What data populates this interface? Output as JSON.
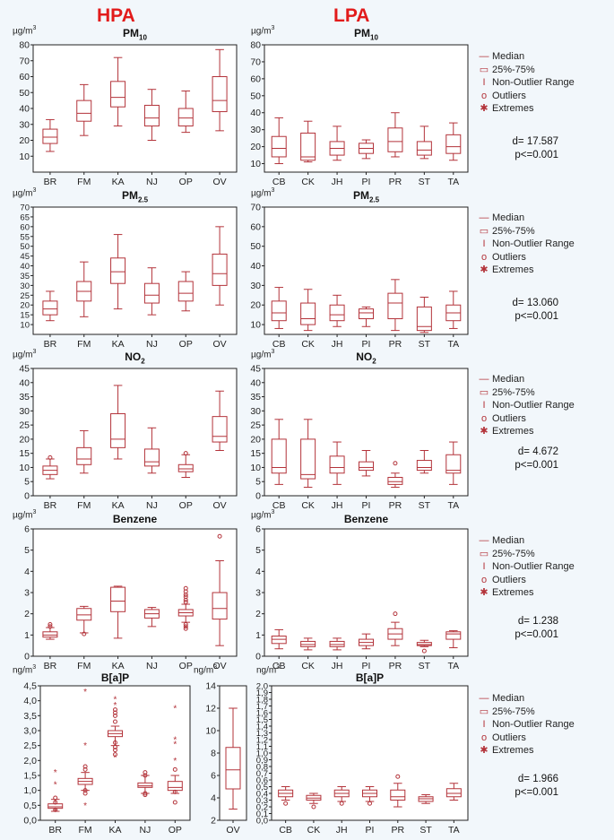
{
  "headers": {
    "hpa": "HPA",
    "lpa": "LPA"
  },
  "legend": [
    "Median",
    "25%-75%",
    "Non-Outlier Range",
    "Outliers",
    "Extremes"
  ],
  "colors": {
    "box": "#b3333a",
    "header": "#e21b1b"
  },
  "chart_data": [
    {
      "id": "pm10-hpa",
      "type": "box",
      "title": "PM",
      "title_sub": "10",
      "unit": "µg/m3",
      "ylim": [
        0,
        80
      ],
      "yticks": [
        10,
        20,
        30,
        40,
        50,
        60,
        70,
        80
      ],
      "categories": [
        "BR",
        "FM",
        "KA",
        "NJ",
        "OP",
        "OV"
      ],
      "boxes": [
        {
          "min": 13,
          "q1": 18,
          "median": 22,
          "q3": 27,
          "max": 33,
          "outliers": [],
          "extremes": []
        },
        {
          "min": 23,
          "q1": 32,
          "median": 37,
          "q3": 45,
          "max": 55,
          "outliers": [],
          "extremes": []
        },
        {
          "min": 29,
          "q1": 41,
          "median": 47,
          "q3": 57,
          "max": 72,
          "outliers": [],
          "extremes": []
        },
        {
          "min": 20,
          "q1": 29,
          "median": 34,
          "q3": 42,
          "max": 52,
          "outliers": [],
          "extremes": []
        },
        {
          "min": 25,
          "q1": 29,
          "median": 34,
          "q3": 40,
          "max": 51,
          "outliers": [],
          "extremes": []
        },
        {
          "min": 26,
          "q1": 38,
          "median": 45,
          "q3": 60,
          "max": 77,
          "outliers": [],
          "extremes": []
        }
      ]
    },
    {
      "id": "pm10-lpa",
      "type": "box",
      "title": "PM",
      "title_sub": "10",
      "unit": "µg/m3",
      "ylim": [
        5,
        80
      ],
      "yticks": [
        10,
        20,
        30,
        40,
        50,
        60,
        70,
        80
      ],
      "categories": [
        "CB",
        "CK",
        "JH",
        "PI",
        "PR",
        "ST",
        "TA"
      ],
      "boxes": [
        {
          "min": 10,
          "q1": 14,
          "median": 19,
          "q3": 26,
          "max": 37,
          "outliers": [],
          "extremes": []
        },
        {
          "min": 11,
          "q1": 12,
          "median": 14,
          "q3": 28,
          "max": 35,
          "outliers": [],
          "extremes": []
        },
        {
          "min": 12,
          "q1": 15,
          "median": 19,
          "q3": 23,
          "max": 32,
          "outliers": [],
          "extremes": []
        },
        {
          "min": 13,
          "q1": 16,
          "median": 19,
          "q3": 22,
          "max": 24,
          "outliers": [],
          "extremes": []
        },
        {
          "min": 14,
          "q1": 17,
          "median": 23,
          "q3": 31,
          "max": 40,
          "outliers": [],
          "extremes": []
        },
        {
          "min": 13,
          "q1": 15,
          "median": 18,
          "q3": 23,
          "max": 32,
          "outliers": [],
          "extremes": []
        },
        {
          "min": 12,
          "q1": 16,
          "median": 20,
          "q3": 27,
          "max": 34,
          "outliers": [],
          "extremes": []
        }
      ]
    },
    {
      "id": "pm25-hpa",
      "type": "box",
      "title": "PM",
      "title_sub": "2.5",
      "unit": "µg/m3",
      "ylim": [
        5,
        70
      ],
      "yticks": [
        10,
        15,
        20,
        25,
        30,
        35,
        40,
        45,
        50,
        55,
        60,
        65,
        70
      ],
      "categories": [
        "BR",
        "FM",
        "KA",
        "NJ",
        "OP",
        "OV"
      ],
      "boxes": [
        {
          "min": 12,
          "q1": 15,
          "median": 18,
          "q3": 22,
          "max": 27,
          "outliers": [],
          "extremes": []
        },
        {
          "min": 14,
          "q1": 22,
          "median": 27,
          "q3": 32,
          "max": 42,
          "outliers": [],
          "extremes": []
        },
        {
          "min": 18,
          "q1": 31,
          "median": 37,
          "q3": 44,
          "max": 56,
          "outliers": [],
          "extremes": []
        },
        {
          "min": 15,
          "q1": 21,
          "median": 25,
          "q3": 31,
          "max": 39,
          "outliers": [],
          "extremes": []
        },
        {
          "min": 17,
          "q1": 22,
          "median": 26,
          "q3": 32,
          "max": 37,
          "outliers": [],
          "extremes": []
        },
        {
          "min": 20,
          "q1": 30,
          "median": 36,
          "q3": 46,
          "max": 60,
          "outliers": [],
          "extremes": []
        }
      ]
    },
    {
      "id": "pm25-lpa",
      "type": "box",
      "title": "PM",
      "title_sub": "2.5",
      "unit": "µg/m3",
      "ylim": [
        5,
        70
      ],
      "yticks": [
        10,
        20,
        30,
        40,
        50,
        60,
        70
      ],
      "categories": [
        "CB",
        "CK",
        "JH",
        "PI",
        "PR",
        "ST",
        "TA"
      ],
      "boxes": [
        {
          "min": 8,
          "q1": 12,
          "median": 16,
          "q3": 22,
          "max": 29,
          "outliers": [],
          "extremes": []
        },
        {
          "min": 7,
          "q1": 10,
          "median": 13,
          "q3": 21,
          "max": 28,
          "outliers": [],
          "extremes": []
        },
        {
          "min": 9,
          "q1": 12,
          "median": 15,
          "q3": 20,
          "max": 25,
          "outliers": [],
          "extremes": []
        },
        {
          "min": 9,
          "q1": 13,
          "median": 16,
          "q3": 18,
          "max": 19,
          "outliers": [],
          "extremes": []
        },
        {
          "min": 7,
          "q1": 13,
          "median": 21,
          "q3": 26,
          "max": 33,
          "outliers": [],
          "extremes": []
        },
        {
          "min": 6,
          "q1": 7,
          "median": 9,
          "q3": 19,
          "max": 24,
          "outliers": [],
          "extremes": []
        },
        {
          "min": 8,
          "q1": 12,
          "median": 16,
          "q3": 20,
          "max": 27,
          "outliers": [],
          "extremes": []
        }
      ]
    },
    {
      "id": "no2-hpa",
      "type": "box",
      "title": "NO",
      "title_sub": "2",
      "unit": "µg/m3",
      "ylim": [
        0,
        45
      ],
      "yticks": [
        0,
        5,
        10,
        15,
        20,
        25,
        30,
        35,
        40,
        45
      ],
      "categories": [
        "BR",
        "FM",
        "KA",
        "NJ",
        "OP",
        "OV"
      ],
      "boxes": [
        {
          "min": 6,
          "q1": 7.5,
          "median": 9,
          "q3": 10.5,
          "max": 13,
          "outliers": [
            13.5
          ],
          "extremes": []
        },
        {
          "min": 8,
          "q1": 11,
          "median": 13,
          "q3": 17,
          "max": 23,
          "outliers": [],
          "extremes": []
        },
        {
          "min": 13,
          "q1": 17,
          "median": 20,
          "q3": 29,
          "max": 39,
          "outliers": [],
          "extremes": []
        },
        {
          "min": 8,
          "q1": 10.5,
          "median": 12,
          "q3": 16.5,
          "max": 24,
          "outliers": [],
          "extremes": []
        },
        {
          "min": 6.5,
          "q1": 8.5,
          "median": 9.5,
          "q3": 11,
          "max": 14.5,
          "outliers": [
            15
          ],
          "extremes": []
        },
        {
          "min": 16,
          "q1": 19,
          "median": 21,
          "q3": 28,
          "max": 37,
          "outliers": [],
          "extremes": []
        }
      ]
    },
    {
      "id": "no2-lpa",
      "type": "box",
      "title": "NO",
      "title_sub": "2",
      "unit": "µg/m3",
      "ylim": [
        0,
        45
      ],
      "yticks": [
        0,
        5,
        10,
        15,
        20,
        25,
        30,
        35,
        40,
        45
      ],
      "categories": [
        "CB",
        "CK",
        "JH",
        "PI",
        "PR",
        "ST",
        "TA"
      ],
      "boxes": [
        {
          "min": 4,
          "q1": 8,
          "median": 10,
          "q3": 20,
          "max": 27,
          "outliers": [],
          "extremes": []
        },
        {
          "min": 3,
          "q1": 6,
          "median": 7.5,
          "q3": 20,
          "max": 27,
          "outliers": [],
          "extremes": []
        },
        {
          "min": 4,
          "q1": 8,
          "median": 10,
          "q3": 14,
          "max": 19,
          "outliers": [],
          "extremes": []
        },
        {
          "min": 7,
          "q1": 9,
          "median": 10,
          "q3": 12,
          "max": 16,
          "outliers": [],
          "extremes": []
        },
        {
          "min": 3,
          "q1": 4,
          "median": 5,
          "q3": 6.5,
          "max": 8,
          "outliers": [
            11.5
          ],
          "extremes": []
        },
        {
          "min": 8,
          "q1": 9,
          "median": 10,
          "q3": 12.5,
          "max": 16,
          "outliers": [],
          "extremes": []
        },
        {
          "min": 4,
          "q1": 8,
          "median": 9,
          "q3": 14.5,
          "max": 19,
          "outliers": [],
          "extremes": []
        }
      ]
    },
    {
      "id": "benzene-hpa",
      "type": "box",
      "title": "Benzene",
      "title_sub": "",
      "unit": "µg/m3",
      "ylim": [
        0,
        6
      ],
      "yticks": [
        0,
        1,
        2,
        3,
        4,
        5,
        6
      ],
      "categories": [
        "BR",
        "FM",
        "KA",
        "NJ",
        "OP",
        "OV"
      ],
      "boxes": [
        {
          "min": 0.8,
          "q1": 0.9,
          "median": 1.0,
          "q3": 1.15,
          "max": 1.35,
          "outliers": [
            1.4,
            1.5
          ],
          "extremes": []
        },
        {
          "min": 1.1,
          "q1": 1.7,
          "median": 1.95,
          "q3": 2.25,
          "max": 2.35,
          "outliers": [
            1.05
          ],
          "extremes": []
        },
        {
          "min": 0.85,
          "q1": 2.1,
          "median": 2.6,
          "q3": 3.25,
          "max": 3.3,
          "outliers": [],
          "extremes": []
        },
        {
          "min": 1.4,
          "q1": 1.8,
          "median": 2.0,
          "q3": 2.2,
          "max": 2.3,
          "outliers": [],
          "extremes": []
        },
        {
          "min": 1.6,
          "q1": 1.9,
          "median": 2.05,
          "q3": 2.2,
          "max": 2.45,
          "outliers": [
            1.3,
            1.4,
            1.5,
            2.55,
            2.65,
            2.8,
            2.9,
            3.05,
            3.2
          ],
          "extremes": []
        },
        {
          "min": 0.5,
          "q1": 1.75,
          "median": 2.25,
          "q3": 3.0,
          "max": 4.5,
          "outliers": [
            5.65
          ],
          "extremes": []
        }
      ]
    },
    {
      "id": "benzene-lpa",
      "type": "box",
      "title": "Benzene",
      "title_sub": "",
      "unit": "µg/m3",
      "ylim": [
        0,
        6
      ],
      "yticks": [
        0,
        1,
        2,
        3,
        4,
        5,
        6
      ],
      "categories": [
        "CB",
        "CK",
        "JH",
        "PI",
        "PR",
        "ST",
        "TA"
      ],
      "boxes": [
        {
          "min": 0.35,
          "q1": 0.6,
          "median": 0.8,
          "q3": 0.95,
          "max": 1.25,
          "outliers": [],
          "extremes": []
        },
        {
          "min": 0.3,
          "q1": 0.45,
          "median": 0.55,
          "q3": 0.7,
          "max": 0.85,
          "outliers": [],
          "extremes": []
        },
        {
          "min": 0.3,
          "q1": 0.45,
          "median": 0.55,
          "q3": 0.7,
          "max": 0.85,
          "outliers": [],
          "extremes": []
        },
        {
          "min": 0.35,
          "q1": 0.5,
          "median": 0.65,
          "q3": 0.8,
          "max": 1.05,
          "outliers": [],
          "extremes": []
        },
        {
          "min": 0.5,
          "q1": 0.8,
          "median": 1.05,
          "q3": 1.3,
          "max": 1.6,
          "outliers": [
            2.0
          ],
          "extremes": []
        },
        {
          "min": 0.45,
          "q1": 0.5,
          "median": 0.55,
          "q3": 0.65,
          "max": 0.75,
          "outliers": [
            0.25
          ],
          "extremes": []
        },
        {
          "min": 0.4,
          "q1": 0.8,
          "median": 1.05,
          "q3": 1.15,
          "max": 1.2,
          "outliers": [],
          "extremes": []
        }
      ]
    },
    {
      "id": "bap-hpa",
      "type": "box",
      "title": "B[a]P",
      "title_sub": "",
      "unit": "ng/m3",
      "ylim": [
        0,
        4.5
      ],
      "yticks": [
        0,
        0.5,
        1,
        1.5,
        2,
        2.5,
        3,
        3.5,
        4,
        4.5
      ],
      "decimal_comma": true,
      "categories": [
        "BR",
        "FM",
        "KA",
        "NJ",
        "OP"
      ],
      "boxes": [
        {
          "min": 0.3,
          "q1": 0.4,
          "median": 0.45,
          "q3": 0.55,
          "max": 0.7,
          "outliers": [
            0.35,
            0.6,
            0.75
          ],
          "extremes": [
            1.6,
            1.2,
            0.3
          ]
        },
        {
          "min": 1.0,
          "q1": 1.2,
          "median": 1.3,
          "q3": 1.4,
          "max": 1.6,
          "outliers": [
            0.9,
            1.0,
            1.7,
            1.8
          ],
          "extremes": [
            4.3,
            2.5,
            0.5
          ]
        },
        {
          "min": 2.5,
          "q1": 2.8,
          "median": 2.9,
          "q3": 3.0,
          "max": 3.15,
          "outliers": [
            2.2,
            2.35,
            2.45,
            2.6,
            3.3,
            3.5,
            3.6,
            3.7
          ],
          "extremes": [
            4.05,
            3.85,
            2.1
          ]
        },
        {
          "min": 0.9,
          "q1": 1.1,
          "median": 1.15,
          "q3": 1.25,
          "max": 1.5,
          "outliers": [
            0.85,
            0.9,
            1.5,
            1.6
          ],
          "extremes": []
        },
        {
          "min": 0.9,
          "q1": 1.0,
          "median": 1.1,
          "q3": 1.3,
          "max": 1.5,
          "outliers": [
            0.6,
            0.95,
            1.7
          ],
          "extremes": [
            2.0,
            2.55,
            2.7,
            3.75
          ]
        }
      ]
    },
    {
      "id": "bap-ov",
      "type": "box",
      "title": "",
      "title_sub": "",
      "unit": "ng/m3",
      "ylim": [
        2,
        14
      ],
      "yticks": [
        2,
        4,
        6,
        8,
        10,
        12,
        14
      ],
      "categories": [
        "OV"
      ],
      "boxes": [
        {
          "min": 3,
          "q1": 4.8,
          "median": 6.5,
          "q3": 8.5,
          "max": 12,
          "outliers": [],
          "extremes": []
        }
      ]
    },
    {
      "id": "bap-lpa",
      "type": "box",
      "title": "B[a]P",
      "title_sub": "",
      "unit": "ng/m3",
      "ylim": [
        0,
        2.0
      ],
      "yticks": [
        0,
        0.1,
        0.2,
        0.3,
        0.4,
        0.5,
        0.6,
        0.7,
        0.8,
        0.9,
        1.0,
        1.1,
        1.2,
        1.3,
        1.4,
        1.5,
        1.6,
        1.7,
        1.8,
        1.9,
        2.0
      ],
      "decimal_comma": true,
      "categories": [
        "CB",
        "CK",
        "JH",
        "PI",
        "PR",
        "ST",
        "TA"
      ],
      "boxes": [
        {
          "min": 0.3,
          "q1": 0.35,
          "median": 0.4,
          "q3": 0.45,
          "max": 0.5,
          "outliers": [
            0.25
          ],
          "extremes": []
        },
        {
          "min": 0.25,
          "q1": 0.3,
          "median": 0.33,
          "q3": 0.37,
          "max": 0.4,
          "outliers": [
            0.2
          ],
          "extremes": []
        },
        {
          "min": 0.28,
          "q1": 0.35,
          "median": 0.4,
          "q3": 0.45,
          "max": 0.5,
          "outliers": [
            0.25
          ],
          "extremes": []
        },
        {
          "min": 0.28,
          "q1": 0.35,
          "median": 0.4,
          "q3": 0.45,
          "max": 0.5,
          "outliers": [
            0.25
          ],
          "extremes": []
        },
        {
          "min": 0.2,
          "q1": 0.3,
          "median": 0.35,
          "q3": 0.45,
          "max": 0.55,
          "outliers": [
            0.65
          ],
          "extremes": []
        },
        {
          "min": 0.25,
          "q1": 0.28,
          "median": 0.32,
          "q3": 0.35,
          "max": 0.38,
          "outliers": [],
          "extremes": []
        },
        {
          "min": 0.3,
          "q1": 0.35,
          "median": 0.4,
          "q3": 0.47,
          "max": 0.55,
          "outliers": [],
          "extremes": []
        }
      ]
    }
  ],
  "stats": [
    {
      "d": "d= 17.587",
      "p": "p<=0.001"
    },
    {
      "d": "d= 13.060",
      "p": "p<=0.001"
    },
    {
      "d": "d= 4.672",
      "p": "p<=0.001"
    },
    {
      "d": "d= 1.238",
      "p": "p<=0.001"
    },
    {
      "d": "d= 1.966",
      "p": "p<=0.001"
    }
  ]
}
